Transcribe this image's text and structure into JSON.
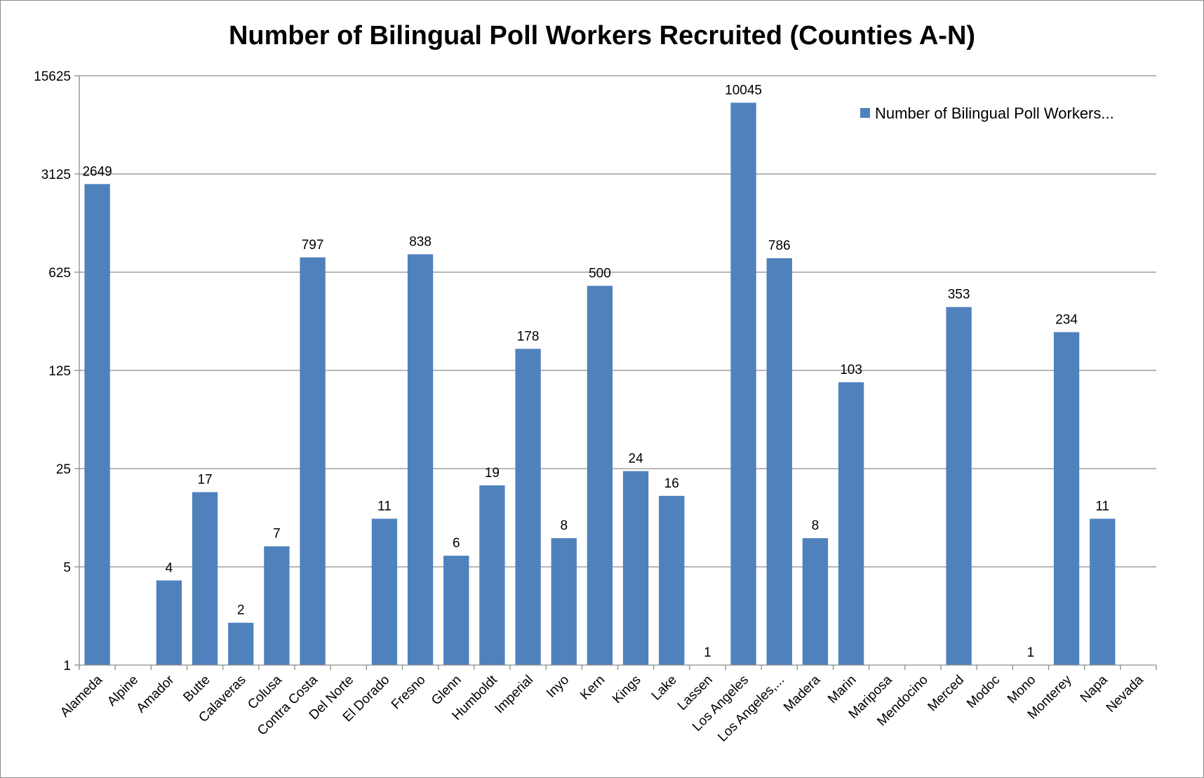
{
  "chart_data": {
    "type": "bar",
    "title": "Number of Bilingual Poll Workers Recruited (Counties A-N)",
    "xlabel": "",
    "ylabel": "",
    "y_scale": "log5",
    "ylim": [
      1,
      15625
    ],
    "y_ticks": [
      1,
      5,
      25,
      125,
      625,
      3125,
      15625
    ],
    "y_tick_labels": [
      "1",
      "5",
      "25",
      "125",
      "625",
      "3125",
      "15625"
    ],
    "grid": true,
    "legend_position": "top-right",
    "bar_color": "#4f81bd",
    "categories": [
      "Alameda",
      "Alpine",
      "Amador",
      "Butte",
      "Calaveras",
      "Colusa",
      "Contra Costa",
      "Del Norte",
      "El Dorado",
      "Fresno",
      "Glenn",
      "Humboldt",
      "Imperial",
      "Inyo",
      "Kern",
      "Kings",
      "Lake",
      "Lassen",
      "Los Angeles",
      "Los Angeles,...",
      "Madera",
      "Marin",
      "Mariposa",
      "Mendocino",
      "Merced",
      "Modoc",
      "Mono",
      "Monterey",
      "Napa",
      "Nevada"
    ],
    "series": [
      {
        "name": "Number of Bilingual Poll Workers...",
        "values": [
          2649,
          null,
          4,
          17,
          2,
          7,
          797,
          null,
          11,
          838,
          6,
          19,
          178,
          8,
          500,
          24,
          16,
          1,
          10045,
          786,
          8,
          103,
          null,
          null,
          353,
          null,
          1,
          234,
          11,
          null
        ],
        "labels": [
          "2649",
          "",
          "4",
          "17",
          "2",
          "7",
          "797",
          "",
          "11",
          "838",
          "6",
          "19",
          "178",
          "8",
          "500",
          "24",
          "16",
          "1",
          "10045",
          "786",
          "8",
          "103",
          "",
          "",
          "353",
          "",
          "1",
          "234",
          "11",
          ""
        ]
      }
    ]
  }
}
